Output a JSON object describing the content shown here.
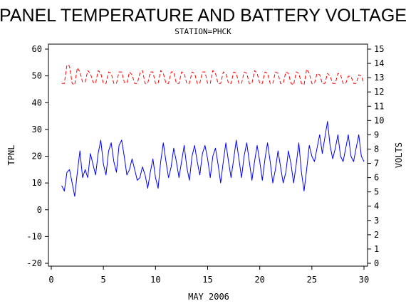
{
  "chart_data": {
    "type": "line",
    "title": "PANEL TEMPERATURE AND BATTERY VOLTAGE",
    "subtitle": "STATION=PHCK",
    "xlabel": "MAY 2006",
    "ylabel_left": "TPNL",
    "ylabel_right": "VOLTS",
    "xlim": [
      0,
      30
    ],
    "ylim_left": [
      -20,
      60
    ],
    "ylim_right": [
      0,
      15
    ],
    "x_ticks": [
      0,
      5,
      10,
      15,
      20,
      25,
      30
    ],
    "y_ticks_left": [
      -20,
      -10,
      0,
      10,
      20,
      30,
      40,
      50,
      60
    ],
    "y_ticks_right": [
      0,
      1,
      2,
      3,
      4,
      5,
      6,
      7,
      8,
      9,
      10,
      11,
      12,
      13,
      14,
      15
    ],
    "grid": false,
    "series": [
      {
        "axis": "left",
        "color": "#0000ff",
        "style": "solid",
        "x": [
          1.0,
          1.25,
          1.5,
          1.75,
          2.0,
          2.25,
          2.5,
          2.75,
          3.0,
          3.25,
          3.5,
          3.75,
          4.0,
          4.25,
          4.5,
          4.75,
          5.0,
          5.25,
          5.5,
          5.75,
          6.0,
          6.25,
          6.5,
          6.75,
          7.0,
          7.25,
          7.5,
          7.75,
          8.0,
          8.25,
          8.5,
          8.75,
          9.0,
          9.25,
          9.5,
          9.75,
          10.0,
          10.25,
          10.5,
          10.75,
          11.0,
          11.25,
          11.5,
          11.75,
          12.0,
          12.25,
          12.5,
          12.75,
          13.0,
          13.25,
          13.5,
          13.75,
          14.0,
          14.25,
          14.5,
          14.75,
          15.0,
          15.25,
          15.5,
          15.75,
          16.0,
          16.25,
          16.5,
          16.75,
          17.0,
          17.25,
          17.5,
          17.75,
          18.0,
          18.25,
          18.5,
          18.75,
          19.0,
          19.25,
          19.5,
          19.75,
          20.0,
          20.25,
          20.5,
          20.75,
          21.0,
          21.25,
          21.5,
          21.75,
          22.0,
          22.25,
          22.5,
          22.75,
          23.0,
          23.25,
          23.5,
          23.75,
          24.0,
          24.25,
          24.5,
          24.75,
          25.0,
          25.25,
          25.5,
          25.75,
          26.0,
          26.25,
          26.5,
          26.75,
          27.0,
          27.25,
          27.5,
          27.75,
          28.0,
          28.25,
          28.5,
          28.75,
          29.0,
          29.25,
          29.5,
          29.75,
          30.0
        ],
        "values": [
          9,
          7,
          14,
          15,
          10,
          5,
          14,
          22,
          12,
          15,
          12,
          21,
          17,
          13,
          21,
          26,
          17,
          13,
          22,
          25,
          18,
          14,
          24,
          26,
          20,
          13,
          15,
          19,
          15,
          11,
          12,
          16,
          13,
          8,
          14,
          19,
          12,
          8,
          18,
          25,
          18,
          12,
          16,
          23,
          18,
          12,
          18,
          24,
          16,
          11,
          20,
          24,
          18,
          13,
          21,
          24,
          19,
          12,
          20,
          23,
          17,
          10,
          18,
          25,
          18,
          12,
          19,
          26,
          19,
          12,
          20,
          25,
          18,
          11,
          18,
          24,
          18,
          11,
          19,
          25,
          18,
          10,
          15,
          22,
          16,
          10,
          14,
          22,
          17,
          10,
          17,
          25,
          14,
          7,
          15,
          24,
          20,
          18,
          23,
          28,
          21,
          27,
          33,
          24,
          19,
          23,
          28,
          20,
          18,
          23,
          28,
          20,
          18,
          23,
          28,
          20,
          18
        ]
      },
      {
        "axis": "right",
        "color": "#ff0000",
        "style": "dashed",
        "x": [
          1.0,
          1.25,
          1.5,
          1.75,
          2.0,
          2.25,
          2.5,
          2.75,
          3.0,
          3.25,
          3.5,
          3.75,
          4.0,
          4.25,
          4.5,
          4.75,
          5.0,
          5.25,
          5.5,
          5.75,
          6.0,
          6.25,
          6.5,
          6.75,
          7.0,
          7.25,
          7.5,
          7.75,
          8.0,
          8.25,
          8.5,
          8.75,
          9.0,
          9.25,
          9.5,
          9.75,
          10.0,
          10.25,
          10.5,
          10.75,
          11.0,
          11.25,
          11.5,
          11.75,
          12.0,
          12.25,
          12.5,
          12.75,
          13.0,
          13.25,
          13.5,
          13.75,
          14.0,
          14.25,
          14.5,
          14.75,
          15.0,
          15.25,
          15.5,
          15.75,
          16.0,
          16.25,
          16.5,
          16.75,
          17.0,
          17.25,
          17.5,
          17.75,
          18.0,
          18.25,
          18.5,
          18.75,
          19.0,
          19.25,
          19.5,
          19.75,
          20.0,
          20.25,
          20.5,
          20.75,
          21.0,
          21.25,
          21.5,
          21.75,
          22.0,
          22.25,
          22.5,
          22.75,
          23.0,
          23.25,
          23.5,
          23.75,
          24.0,
          24.25,
          24.5,
          24.75,
          25.0,
          25.25,
          25.5,
          25.75,
          26.0,
          26.25,
          26.5,
          26.75,
          27.0,
          27.25,
          27.5,
          27.75,
          28.0,
          28.25,
          28.5,
          28.75,
          29.0,
          29.25,
          29.5,
          29.75,
          30.0
        ],
        "values": [
          12.6,
          12.6,
          13.9,
          13.8,
          12.6,
          12.5,
          13.7,
          13.4,
          12.7,
          12.7,
          13.5,
          13.3,
          12.7,
          12.6,
          13.5,
          13.3,
          12.6,
          12.6,
          13.4,
          13.3,
          12.6,
          12.6,
          13.4,
          13.4,
          12.7,
          12.6,
          13.4,
          13.2,
          12.6,
          12.6,
          13.3,
          13.5,
          12.6,
          12.6,
          13.4,
          13.4,
          12.6,
          12.6,
          13.5,
          13.3,
          12.6,
          12.6,
          13.4,
          13.4,
          12.6,
          12.6,
          13.4,
          13.3,
          12.6,
          12.6,
          13.4,
          13.3,
          12.6,
          12.6,
          13.4,
          13.4,
          12.6,
          12.6,
          13.5,
          13.3,
          12.6,
          12.6,
          13.4,
          13.3,
          12.6,
          12.6,
          13.4,
          13.3,
          12.6,
          12.6,
          13.4,
          13.3,
          12.6,
          12.6,
          13.5,
          13.3,
          12.6,
          12.6,
          13.4,
          13.3,
          12.6,
          12.6,
          13.4,
          13.3,
          12.6,
          12.6,
          13.4,
          13.3,
          12.6,
          12.5,
          13.4,
          13.3,
          12.6,
          12.5,
          13.6,
          13.3,
          12.6,
          12.6,
          13.3,
          13.2,
          12.6,
          12.6,
          13.3,
          13.1,
          12.6,
          12.6,
          13.3,
          13.2,
          12.6,
          12.6,
          13.1,
          13.1,
          12.6,
          12.6,
          13.2,
          13.1,
          12.6
        ]
      }
    ]
  }
}
